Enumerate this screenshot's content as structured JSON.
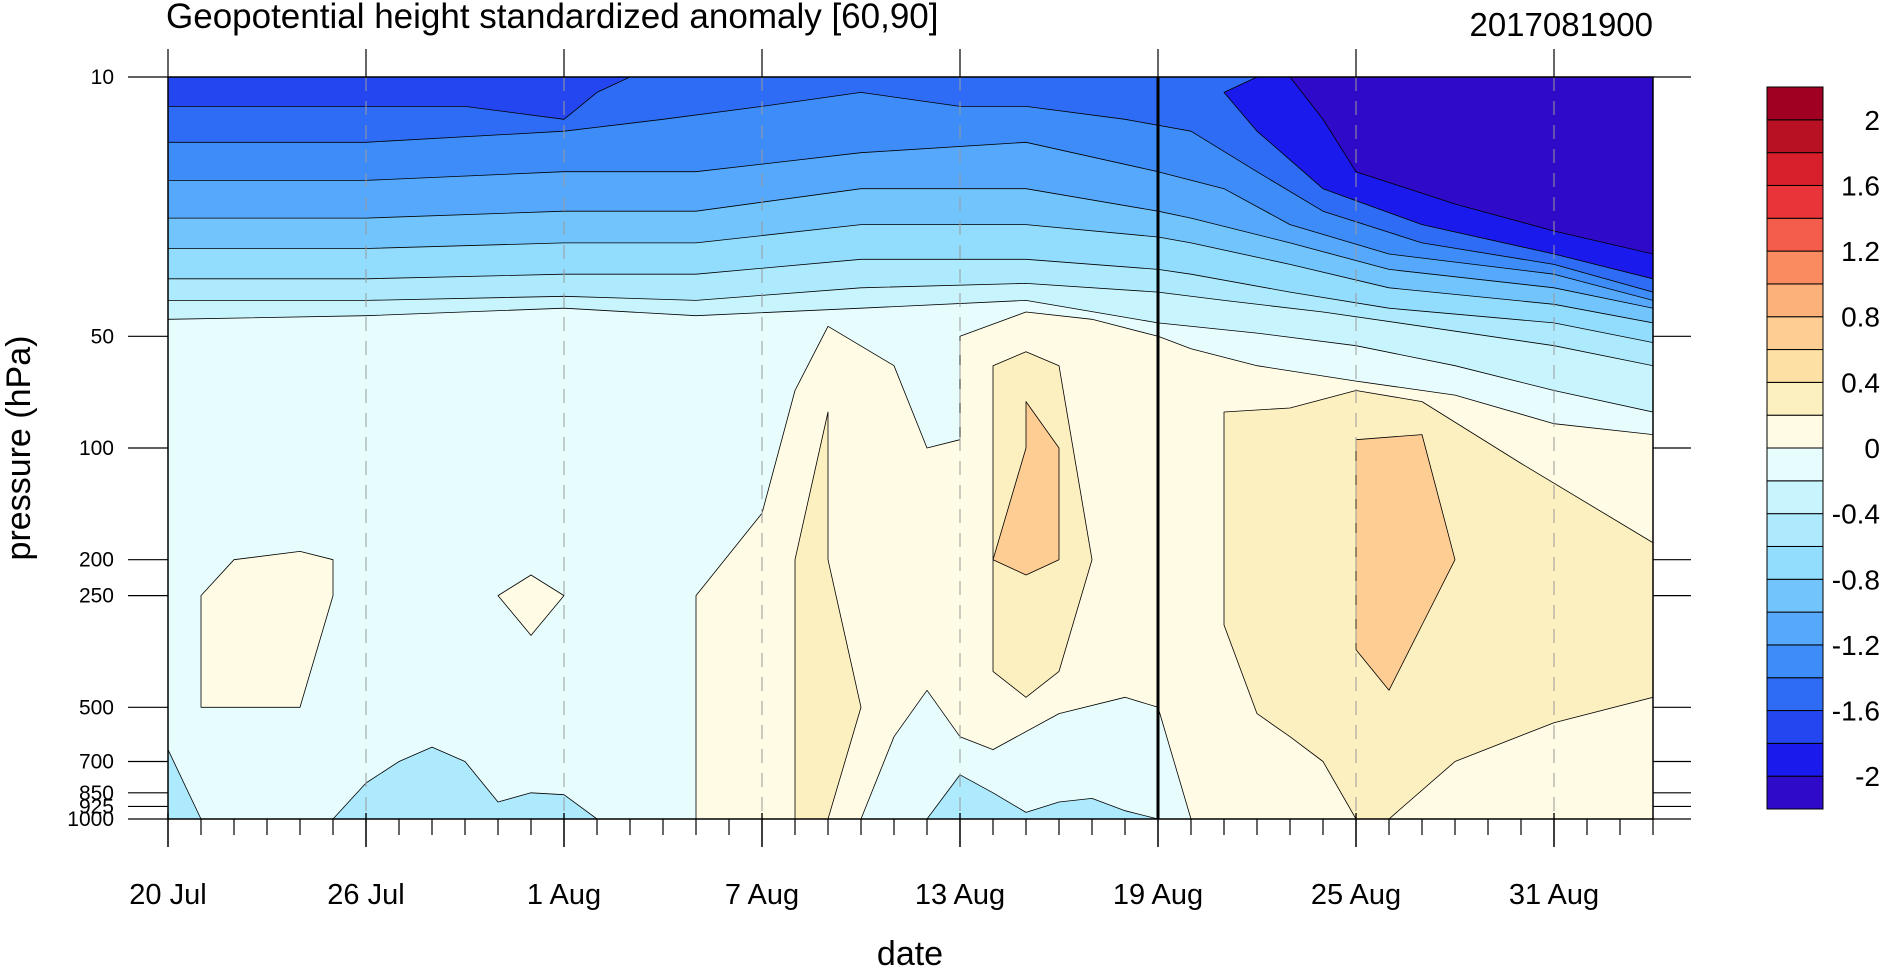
{
  "chart_data": {
    "type": "heatmap",
    "title": "Geopotential height standardized anomaly [60,90]",
    "subtitle": "2017081900",
    "xlabel": "date",
    "ylabel": "pressure (hPa)",
    "x_start": "2017-07-20",
    "x_end": "2017-09-03",
    "x_ticks": [
      {
        "date": "2017-07-20",
        "label": "20 Jul"
      },
      {
        "date": "2017-07-26",
        "label": "26 Jul"
      },
      {
        "date": "2017-08-01",
        "label": "1 Aug"
      },
      {
        "date": "2017-08-07",
        "label": "7 Aug"
      },
      {
        "date": "2017-08-13",
        "label": "13 Aug"
      },
      {
        "date": "2017-08-19",
        "label": "19 Aug"
      },
      {
        "date": "2017-08-25",
        "label": "25 Aug"
      },
      {
        "date": "2017-08-31",
        "label": "31 Aug"
      }
    ],
    "analysis_date_line": "2017-08-19",
    "y_scale": "log",
    "y_direction": "decreasing-upward",
    "ylim": [
      1000,
      10
    ],
    "pressure_levels": [
      1000,
      925,
      850,
      700,
      500,
      250,
      200,
      100,
      50,
      10
    ],
    "y_tick_labels": [
      "10",
      "50",
      "100",
      "200",
      "250",
      "500",
      "700",
      "850",
      "925",
      "1000"
    ],
    "colorbar_levels": [
      -2.2,
      -2.0,
      -1.8,
      -1.6,
      -1.4,
      -1.2,
      -1.0,
      -0.8,
      -0.6,
      -0.4,
      -0.2,
      0.0,
      0.2,
      0.4,
      0.6,
      0.8,
      1.0,
      1.2,
      1.4,
      1.6,
      1.8,
      2.0,
      2.2
    ],
    "colorbar_tick_labels": [
      "2",
      "1.6",
      "1.2",
      "0.8",
      "0.4",
      "0",
      "-0.4",
      "-0.8",
      "-1.2",
      "-1.6",
      "-2"
    ],
    "colorbar_colors": [
      "#2f0ac9",
      "#1a1aec",
      "#2446f0",
      "#2f6cf5",
      "#3d8cf8",
      "#55a8fc",
      "#72c4fd",
      "#92dcfd",
      "#aeeafd",
      "#c8f4fd",
      "#e6fcfd",
      "#fffbe4",
      "#fdf0c0",
      "#fde0a4",
      "#fdcd94",
      "#fcb07a",
      "#fa8a5f",
      "#f45c4b",
      "#e9353a",
      "#d8202c",
      "#b81124",
      "#a00021"
    ],
    "contours": [
      {
        "level": -0.2,
        "fill": "#c8f4fd",
        "points": [
          [
            "2017-07-20",
            10
          ],
          [
            "2017-09-03",
            10
          ],
          [
            "2017-09-03",
            80
          ],
          [
            "2017-08-31",
            70
          ],
          [
            "2017-08-28",
            60
          ],
          [
            "2017-08-25",
            53
          ],
          [
            "2017-08-22",
            49
          ],
          [
            "2017-08-19",
            46
          ],
          [
            "2017-08-15",
            40
          ],
          [
            "2017-08-10",
            42
          ],
          [
            "2017-08-05",
            44
          ],
          [
            "2017-08-01",
            42
          ],
          [
            "2017-07-26",
            44
          ],
          [
            "2017-07-20",
            45
          ]
        ]
      },
      {
        "level": -0.4,
        "fill": "#aeeafd",
        "points": [
          [
            "2017-07-20",
            10
          ],
          [
            "2017-09-03",
            10
          ],
          [
            "2017-09-03",
            60
          ],
          [
            "2017-08-31",
            53
          ],
          [
            "2017-08-27",
            47
          ],
          [
            "2017-08-24",
            43
          ],
          [
            "2017-08-21",
            40
          ],
          [
            "2017-08-19",
            38
          ],
          [
            "2017-08-15",
            36
          ],
          [
            "2017-08-10",
            37
          ],
          [
            "2017-08-05",
            40
          ],
          [
            "2017-08-01",
            39
          ],
          [
            "2017-07-26",
            40
          ],
          [
            "2017-07-20",
            40
          ]
        ]
      },
      {
        "level": -0.6,
        "fill": "#92dcfd",
        "points": [
          [
            "2017-07-20",
            10
          ],
          [
            "2017-09-03",
            10
          ],
          [
            "2017-09-03",
            52
          ],
          [
            "2017-08-31",
            46
          ],
          [
            "2017-08-26",
            42
          ],
          [
            "2017-08-23",
            38
          ],
          [
            "2017-08-20",
            34
          ],
          [
            "2017-08-19",
            33
          ],
          [
            "2017-08-15",
            31
          ],
          [
            "2017-08-10",
            31
          ],
          [
            "2017-08-05",
            34
          ],
          [
            "2017-08-01",
            34
          ],
          [
            "2017-07-26",
            35
          ],
          [
            "2017-07-20",
            35
          ]
        ]
      },
      {
        "level": -0.8,
        "fill": "#72c4fd",
        "points": [
          [
            "2017-07-20",
            10
          ],
          [
            "2017-09-03",
            10
          ],
          [
            "2017-09-03",
            46
          ],
          [
            "2017-08-31",
            41
          ],
          [
            "2017-08-26",
            37
          ],
          [
            "2017-08-23",
            32
          ],
          [
            "2017-08-20",
            28
          ],
          [
            "2017-08-19",
            27
          ],
          [
            "2017-08-15",
            25
          ],
          [
            "2017-08-10",
            25
          ],
          [
            "2017-08-05",
            28
          ],
          [
            "2017-08-01",
            28
          ],
          [
            "2017-07-26",
            29
          ],
          [
            "2017-07-20",
            29
          ]
        ]
      },
      {
        "level": -1.0,
        "fill": "#55a8fc",
        "points": [
          [
            "2017-07-20",
            10
          ],
          [
            "2017-09-03",
            10
          ],
          [
            "2017-09-03",
            42
          ],
          [
            "2017-08-31",
            37
          ],
          [
            "2017-08-26",
            33
          ],
          [
            "2017-08-23",
            28
          ],
          [
            "2017-08-20",
            24
          ],
          [
            "2017-08-19",
            23
          ],
          [
            "2017-08-15",
            20
          ],
          [
            "2017-08-10",
            20
          ],
          [
            "2017-08-05",
            23
          ],
          [
            "2017-08-01",
            23
          ],
          [
            "2017-07-26",
            24
          ],
          [
            "2017-07-20",
            24
          ]
        ]
      },
      {
        "level": -1.2,
        "fill": "#3d8cf8",
        "points": [
          [
            "2017-07-20",
            10
          ],
          [
            "2017-09-03",
            10
          ],
          [
            "2017-09-03",
            40
          ],
          [
            "2017-08-31",
            34
          ],
          [
            "2017-08-26",
            30
          ],
          [
            "2017-08-23",
            25
          ],
          [
            "2017-08-21",
            20
          ],
          [
            "2017-08-19",
            18
          ],
          [
            "2017-08-15",
            15
          ],
          [
            "2017-08-10",
            16
          ],
          [
            "2017-08-05",
            18
          ],
          [
            "2017-08-01",
            18
          ],
          [
            "2017-07-26",
            19
          ],
          [
            "2017-07-20",
            19
          ]
        ]
      },
      {
        "level": -1.4,
        "fill": "#2f6cf5",
        "points": [
          [
            "2017-07-20",
            10
          ],
          [
            "2017-08-09",
            10
          ],
          [
            "2017-08-11",
            10
          ],
          [
            "2017-08-14",
            10
          ],
          [
            "2017-08-19",
            10
          ],
          [
            "2017-09-03",
            10
          ],
          [
            "2017-09-03",
            38
          ],
          [
            "2017-08-31",
            32
          ],
          [
            "2017-08-27",
            28
          ],
          [
            "2017-08-24",
            23
          ],
          [
            "2017-08-22",
            18
          ],
          [
            "2017-08-20",
            14
          ],
          [
            "2017-08-18",
            13
          ],
          [
            "2017-08-15",
            12
          ],
          [
            "2017-08-13",
            12
          ],
          [
            "2017-08-10",
            11
          ],
          [
            "2017-08-07",
            12
          ],
          [
            "2017-08-04",
            13
          ],
          [
            "2017-08-01",
            14
          ],
          [
            "2017-07-26",
            15
          ],
          [
            "2017-07-20",
            15
          ]
        ]
      },
      {
        "level": -1.6,
        "fill": "#2446f0",
        "points": [
          [
            "2017-07-20",
            10
          ],
          [
            "2017-08-03",
            10
          ],
          [
            "2017-08-02",
            11
          ],
          [
            "2017-08-01",
            13
          ],
          [
            "2017-07-29",
            12
          ],
          [
            "2017-07-26",
            12
          ],
          [
            "2017-07-20",
            12
          ]
        ]
      },
      {
        "level": -1.8,
        "fill": "#1a1aec",
        "points": [
          [
            "2017-08-22",
            10
          ],
          [
            "2017-09-03",
            10
          ],
          [
            "2017-09-03",
            35
          ],
          [
            "2017-08-31",
            30
          ],
          [
            "2017-08-27",
            25
          ],
          [
            "2017-08-24",
            20
          ],
          [
            "2017-08-22",
            14
          ],
          [
            "2017-08-21",
            11
          ]
        ]
      },
      {
        "level": -2.0,
        "fill": "#2f0ac9",
        "points": [
          [
            "2017-08-23",
            10
          ],
          [
            "2017-09-03",
            10
          ],
          [
            "2017-09-03",
            30
          ],
          [
            "2017-08-31",
            26
          ],
          [
            "2017-08-28",
            22
          ],
          [
            "2017-08-25",
            18
          ],
          [
            "2017-08-24",
            13
          ]
        ]
      },
      {
        "level": 0.0,
        "fill": "#fffbe4",
        "points": [
          [
            "2017-08-07",
            1000
          ],
          [
            "2017-08-05",
            1000
          ],
          [
            "2017-08-05",
            500
          ],
          [
            "2017-08-05",
            250
          ],
          [
            "2017-08-07",
            150
          ],
          [
            "2017-08-08",
            70
          ],
          [
            "2017-08-09",
            47
          ],
          [
            "2017-08-11",
            60
          ],
          [
            "2017-08-12",
            100
          ],
          [
            "2017-08-13",
            95
          ],
          [
            "2017-08-13",
            50
          ],
          [
            "2017-08-15",
            43
          ],
          [
            "2017-08-17",
            45
          ],
          [
            "2017-08-19",
            50
          ],
          [
            "2017-08-20",
            54
          ],
          [
            "2017-08-22",
            60
          ],
          [
            "2017-08-25",
            66
          ],
          [
            "2017-08-28",
            72
          ],
          [
            "2017-08-31",
            86
          ],
          [
            "2017-09-03",
            92
          ],
          [
            "2017-09-03",
            1000
          ],
          [
            "2017-08-20",
            1000
          ],
          [
            "2017-08-19",
            500
          ],
          [
            "2017-08-18",
            470
          ],
          [
            "2017-08-16",
            520
          ],
          [
            "2017-08-14",
            650
          ],
          [
            "2017-08-13",
            600
          ],
          [
            "2017-08-12",
            450
          ],
          [
            "2017-08-11",
            600
          ],
          [
            "2017-08-10",
            1000
          ]
        ]
      },
      {
        "level": 0.0,
        "fill": "#fffbe4",
        "points": [
          [
            "2017-07-21",
            250
          ],
          [
            "2017-07-22",
            200
          ],
          [
            "2017-07-24",
            190
          ],
          [
            "2017-07-25",
            200
          ],
          [
            "2017-07-25",
            250
          ],
          [
            "2017-07-24",
            500
          ],
          [
            "2017-07-21",
            500
          ]
        ]
      },
      {
        "level": 0.0,
        "fill": "#fffbe4",
        "points": [
          [
            "2017-07-30",
            250
          ],
          [
            "2017-07-31",
            220
          ],
          [
            "2017-08-01",
            250
          ],
          [
            "2017-07-31",
            320
          ]
        ]
      },
      {
        "level": 0.2,
        "fill": "#fdf0c0",
        "points": [
          [
            "2017-08-08",
            1000
          ],
          [
            "2017-08-08",
            500
          ],
          [
            "2017-08-08",
            200
          ],
          [
            "2017-08-09",
            80
          ],
          [
            "2017-08-09",
            200
          ],
          [
            "2017-08-10",
            500
          ],
          [
            "2017-08-09",
            1000
          ]
        ]
      },
      {
        "level": 0.2,
        "fill": "#fdf0c0",
        "points": [
          [
            "2017-08-14",
            200
          ],
          [
            "2017-08-14",
            60
          ],
          [
            "2017-08-15",
            55
          ],
          [
            "2017-08-16",
            60
          ],
          [
            "2017-08-17",
            200
          ],
          [
            "2017-08-16",
            400
          ],
          [
            "2017-08-15",
            470
          ],
          [
            "2017-08-14",
            400
          ]
        ]
      },
      {
        "level": 0.2,
        "fill": "#fdf0c0",
        "points": [
          [
            "2017-08-21",
            80
          ],
          [
            "2017-08-23",
            78
          ],
          [
            "2017-08-25",
            70
          ],
          [
            "2017-08-27",
            75
          ],
          [
            "2017-08-30",
            110
          ],
          [
            "2017-09-03",
            180
          ],
          [
            "2017-09-03",
            470
          ],
          [
            "2017-08-31",
            550
          ],
          [
            "2017-08-28",
            700
          ],
          [
            "2017-08-26",
            1000
          ],
          [
            "2017-08-25",
            1000
          ],
          [
            "2017-08-24",
            700
          ],
          [
            "2017-08-23",
            600
          ],
          [
            "2017-08-22",
            520
          ],
          [
            "2017-08-21",
            300
          ]
        ]
      },
      {
        "level": 0.4,
        "fill": "#fdcd94",
        "points": [
          [
            "2017-08-15",
            100
          ],
          [
            "2017-08-15",
            75
          ],
          [
            "2017-08-16",
            100
          ],
          [
            "2017-08-16",
            200
          ],
          [
            "2017-08-15",
            220
          ],
          [
            "2017-08-14",
            200
          ]
        ]
      },
      {
        "level": 0.4,
        "fill": "#fdcd94",
        "points": [
          [
            "2017-08-25",
            200
          ],
          [
            "2017-08-25",
            95
          ],
          [
            "2017-08-27",
            92
          ],
          [
            "2017-08-28",
            200
          ],
          [
            "2017-08-27",
            300
          ],
          [
            "2017-08-26",
            450
          ],
          [
            "2017-08-25",
            350
          ]
        ]
      },
      {
        "level": -0.2,
        "fill": "#aeeafd",
        "points": [
          [
            "2017-07-20",
            1000
          ],
          [
            "2017-07-20",
            650
          ],
          [
            "2017-07-21",
            1000
          ]
        ]
      },
      {
        "level": -0.2,
        "fill": "#aeeafd",
        "points": [
          [
            "2017-07-25",
            1000
          ],
          [
            "2017-07-26",
            800
          ],
          [
            "2017-07-27",
            700
          ],
          [
            "2017-07-28",
            640
          ],
          [
            "2017-07-29",
            700
          ],
          [
            "2017-07-30",
            900
          ],
          [
            "2017-07-31",
            850
          ],
          [
            "2017-08-01",
            860
          ],
          [
            "2017-08-02",
            1000
          ]
        ]
      },
      {
        "level": -0.2,
        "fill": "#aeeafd",
        "points": [
          [
            "2017-08-12",
            1000
          ],
          [
            "2017-08-13",
            760
          ],
          [
            "2017-08-14",
            850
          ],
          [
            "2017-08-15",
            960
          ],
          [
            "2017-08-16",
            900
          ],
          [
            "2017-08-17",
            880
          ],
          [
            "2017-08-18",
            950
          ],
          [
            "2017-08-19",
            1000
          ]
        ]
      }
    ]
  }
}
